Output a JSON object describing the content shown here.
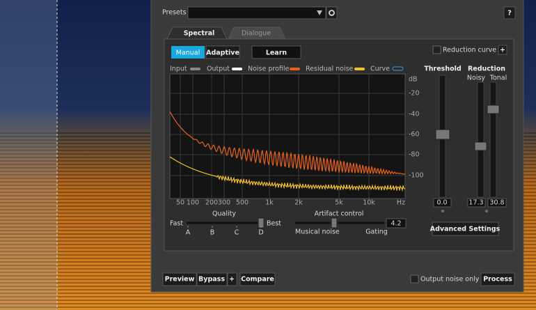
{
  "header": {
    "presets_label": "Presets",
    "help": "?"
  },
  "tabs": [
    "Spectral",
    "Dialogue"
  ],
  "mode_buttons": [
    "Manual",
    "Adaptive"
  ],
  "learn": "Learn",
  "reduction_curve": {
    "label": "Reduction curve",
    "add": "+"
  },
  "legend": [
    "Input",
    "Output",
    "Noise profile",
    "Residual noise",
    "Curve"
  ],
  "graph": {
    "db_unit": "dB",
    "db_labels": [
      "-20",
      "-40",
      "-60",
      "-80",
      "-100"
    ],
    "freq_labels": [
      "50",
      "100",
      "200",
      "300",
      "500",
      "1k",
      "2k",
      "5k",
      "10k"
    ],
    "freq_unit": "Hz"
  },
  "quality": {
    "label": "Quality",
    "min": "Fast",
    "max": "Best",
    "steps": [
      "A",
      "B",
      "C",
      "D"
    ]
  },
  "artifact": {
    "label": "Artifact control",
    "value": "4.2",
    "left": "Musical noise",
    "right": "Gating"
  },
  "threshold": {
    "label": "Threshold",
    "value": "0.0"
  },
  "reduction": {
    "label": "Reduction",
    "noisy": "Noisy",
    "tonal": "Tonal",
    "noisy_value": "17.3",
    "tonal_value": "30.8"
  },
  "advanced": "Advanced Settings",
  "footer": {
    "preview": "Preview",
    "bypass": "Bypass",
    "add": "+",
    "compare": "Compare",
    "output_noise_only": "Output noise only",
    "process": "Process"
  }
}
